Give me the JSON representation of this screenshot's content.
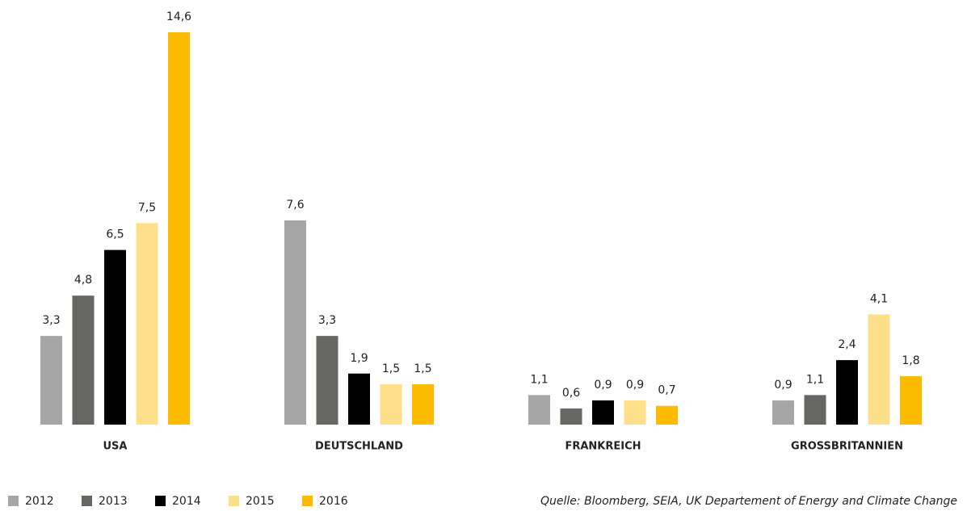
{
  "chart_data": {
    "type": "bar",
    "categories": [
      "USA",
      "DEUTSCHLAND",
      "FRANKREICH",
      "GROSSBRITANNIEN"
    ],
    "series": [
      {
        "name": "2012",
        "color": "#a6a6a6",
        "values": [
          3.3,
          7.6,
          1.1,
          0.9
        ],
        "value_labels": [
          "3,3",
          "7,6",
          "1,1",
          "0,9"
        ]
      },
      {
        "name": "2013",
        "color": "#666663",
        "values": [
          4.8,
          3.3,
          0.6,
          1.1
        ],
        "value_labels": [
          "4,8",
          "3,3",
          "0,6",
          "1,1"
        ]
      },
      {
        "name": "2014",
        "color": "#000000",
        "values": [
          6.5,
          1.9,
          0.9,
          2.4
        ],
        "value_labels": [
          "6,5",
          "1,9",
          "0,9",
          "2,4"
        ]
      },
      {
        "name": "2015",
        "color": "#ffe08a",
        "values": [
          7.5,
          1.5,
          0.9,
          4.1
        ],
        "value_labels": [
          "7,5",
          "1,5",
          "0,9",
          "4,1"
        ]
      },
      {
        "name": "2016",
        "color": "#fdbb00",
        "values": [
          14.6,
          1.5,
          0.7,
          1.8
        ],
        "value_labels": [
          "14,6",
          "1,5",
          "0,7",
          "1,8"
        ]
      }
    ],
    "source": "Quelle: Bloomberg, SEIA, UK Departement of Energy and Climate Change"
  }
}
